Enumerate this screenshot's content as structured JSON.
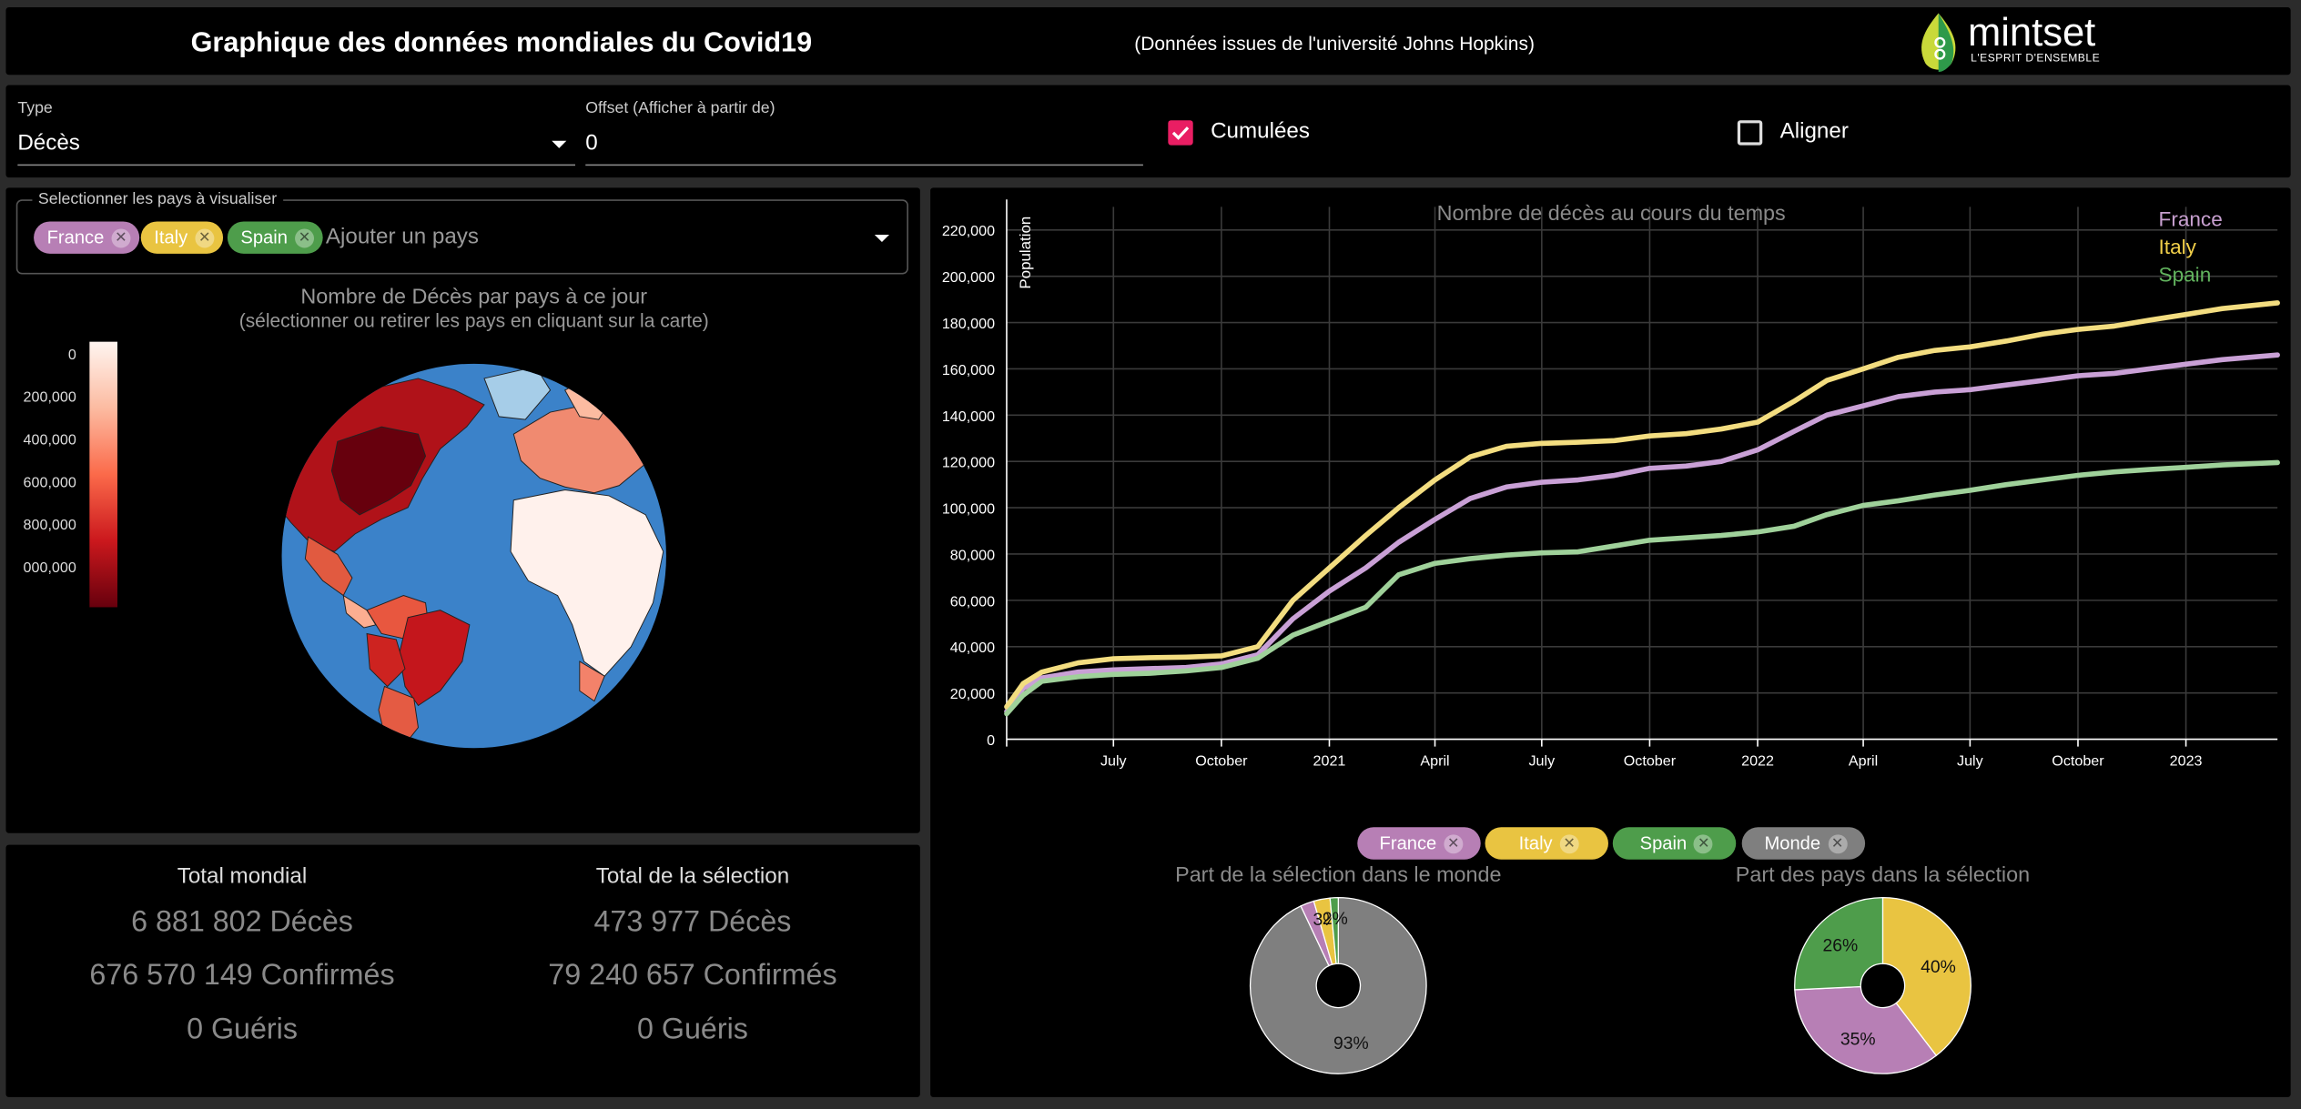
{
  "header": {
    "title": "Graphique des données mondiales du Covid19",
    "subtitle": "(Données issues de l'université Johns Hopkins)",
    "logo": {
      "name": "mintset",
      "tagline": "L'ESPRIT D'ENSEMBLE",
      "icon": "mintset-logo-icon"
    }
  },
  "controls": {
    "type_label": "Type",
    "type_value": "Décès",
    "offset_label": "Offset (Afficher à partir de)",
    "offset_value": "0",
    "cumulees_label": "Cumulées",
    "cumulees_checked": true,
    "aligner_label": "Aligner",
    "aligner_checked": false
  },
  "country_select": {
    "legend": "Selectionner les pays à visualiser",
    "chips": [
      {
        "label": "France",
        "color": "#b77fb5"
      },
      {
        "label": "Italy",
        "color": "#e9c441"
      },
      {
        "label": "Spain",
        "color": "#4e9d4b"
      }
    ],
    "placeholder": "Ajouter un pays"
  },
  "map": {
    "title": "Nombre de Décès par pays à ce jour",
    "subtitle": "(sélectionner ou retirer les pays en cliquant sur la carte)",
    "scale_ticks": [
      "0",
      "200,000",
      "400,000",
      "600,000",
      "800,000",
      "000,000"
    ]
  },
  "stats": {
    "world": {
      "heading": "Total mondial",
      "deaths": "6 881 802 Décès",
      "confirmed": "676 570 149 Confirmés",
      "recovered": "0 Guéris"
    },
    "selection": {
      "heading": "Total de la sélection",
      "deaths": "473 977 Décès",
      "confirmed": "79 240 657 Confirmés",
      "recovered": "0 Guéris"
    }
  },
  "pie_legend": [
    {
      "label": "France",
      "color": "#b77fb5"
    },
    {
      "label": "Italy",
      "color": "#e9c441"
    },
    {
      "label": "Spain",
      "color": "#4e9d4b"
    },
    {
      "label": "Monde",
      "color": "#7f7f7f"
    }
  ],
  "chart_data": [
    {
      "type": "line",
      "title": "Nombre de décès au cours du temps",
      "ylabel": "Population",
      "ylim": [
        0,
        230000
      ],
      "yticks": [
        0,
        20000,
        40000,
        60000,
        80000,
        100000,
        120000,
        140000,
        160000,
        180000,
        200000,
        220000
      ],
      "ytick_labels": [
        "0",
        "20,000",
        "40,000",
        "60,000",
        "80,000",
        "100,000",
        "120,000",
        "140,000",
        "160,000",
        "180,000",
        "200,000",
        "220,000"
      ],
      "xlim": [
        "2020-04-01",
        "2023-03-20"
      ],
      "xtick_dates": [
        "2020-07-01",
        "2020-10-01",
        "2021-01-01",
        "2021-04-01",
        "2021-07-01",
        "2021-10-01",
        "2022-01-01",
        "2022-04-01",
        "2022-07-01",
        "2022-10-01",
        "2023-01-01"
      ],
      "xtick_labels": [
        "July",
        "October",
        "2021",
        "April",
        "July",
        "October",
        "2022",
        "April",
        "July",
        "October",
        "2023"
      ],
      "grid": true,
      "legend_position": "top-right",
      "x": [
        "2020-04-01",
        "2020-04-15",
        "2020-05-01",
        "2020-06-01",
        "2020-07-01",
        "2020-08-01",
        "2020-09-01",
        "2020-10-01",
        "2020-11-01",
        "2020-12-01",
        "2021-01-01",
        "2021-02-01",
        "2021-03-01",
        "2021-04-01",
        "2021-05-01",
        "2021-06-01",
        "2021-07-01",
        "2021-08-01",
        "2021-09-01",
        "2021-10-01",
        "2021-11-01",
        "2021-12-01",
        "2022-01-01",
        "2022-02-01",
        "2022-03-01",
        "2022-04-01",
        "2022-05-01",
        "2022-06-01",
        "2022-07-01",
        "2022-08-01",
        "2022-09-01",
        "2022-10-01",
        "2022-11-01",
        "2022-12-01",
        "2023-01-01",
        "2023-02-01",
        "2023-03-20"
      ],
      "series": [
        {
          "name": "France",
          "color": "#c9a0d6",
          "values": [
            12000,
            22000,
            26500,
            29000,
            30000,
            30500,
            31000,
            32500,
            36500,
            52000,
            64000,
            74000,
            85000,
            95000,
            104000,
            109000,
            111000,
            112000,
            114000,
            117000,
            118000,
            120000,
            125000,
            133000,
            140000,
            144000,
            148000,
            150000,
            151000,
            153000,
            155000,
            157000,
            158000,
            160000,
            162000,
            164000,
            166000
          ]
        },
        {
          "name": "Italy",
          "color": "#f3dd80",
          "values": [
            14000,
            24000,
            29000,
            33000,
            34800,
            35200,
            35500,
            36000,
            40000,
            60000,
            74000,
            88000,
            100000,
            112000,
            122000,
            126500,
            127800,
            128300,
            129000,
            131000,
            132000,
            134000,
            137000,
            146000,
            155000,
            160000,
            165000,
            168000,
            169500,
            172000,
            175000,
            177000,
            178500,
            181000,
            183500,
            186000,
            188500
          ]
        },
        {
          "name": "Spain",
          "color": "#9fd19a",
          "values": [
            11000,
            19000,
            25000,
            27000,
            28000,
            28500,
            29500,
            31000,
            35000,
            45000,
            51000,
            57000,
            71000,
            76000,
            78000,
            79500,
            80500,
            81000,
            83500,
            86000,
            87000,
            88000,
            89500,
            92000,
            97000,
            101000,
            103000,
            105500,
            107500,
            110000,
            112000,
            114000,
            115500,
            116500,
            117500,
            118500,
            119500
          ]
        }
      ]
    },
    {
      "type": "pie",
      "title": "Part de la sélection dans le monde",
      "labels": [
        "Monde",
        "France",
        "Italy",
        "Spain"
      ],
      "values": [
        93,
        2.5,
        3,
        1.5
      ],
      "colors": [
        "#7f7f7f",
        "#b77fb5",
        "#e9c441",
        "#4e9d4b"
      ],
      "slice_labels": [
        "93%",
        "",
        "3%",
        "2%"
      ]
    },
    {
      "type": "pie",
      "title": "Part des pays dans la sélection",
      "labels": [
        "Italy",
        "France",
        "Spain"
      ],
      "values": [
        40,
        35,
        26
      ],
      "colors": [
        "#e9c441",
        "#b77fb5",
        "#4e9d4b"
      ],
      "slice_labels": [
        "40%",
        "35%",
        "26%"
      ]
    }
  ]
}
